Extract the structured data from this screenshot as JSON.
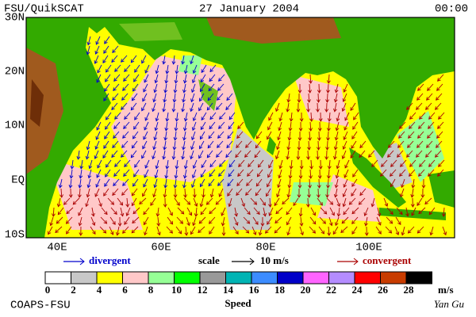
{
  "header": {
    "source": "FSU/QuikSCAT",
    "date": "27 January 2004",
    "time": "00:00"
  },
  "map": {
    "lat_labels": [
      "30N",
      "20N",
      "10N",
      "EQ",
      "10S"
    ],
    "lon_labels": [
      "40E",
      "60E",
      "80E",
      "100E"
    ]
  },
  "legend": {
    "divergent": "divergent",
    "scale": "scale",
    "scale_value": "10 m/s",
    "convergent": "convergent"
  },
  "colorbar": {
    "colors": [
      "#ffffff",
      "#c8c8c8",
      "#ffff00",
      "#ffc8c8",
      "#96ff96",
      "#00ff00",
      "#999999",
      "#00b4b4",
      "#3c8cff",
      "#0000c8",
      "#ff64ff",
      "#b48cff",
      "#ff0000",
      "#c83c00",
      "#000000"
    ],
    "ticks": [
      0,
      2,
      4,
      6,
      8,
      10,
      12,
      14,
      16,
      18,
      20,
      22,
      24,
      26,
      28
    ],
    "unit": "m/s",
    "title": "Speed"
  },
  "footer": {
    "left": "COAPS-FSU",
    "right": "Yan Gu"
  }
}
